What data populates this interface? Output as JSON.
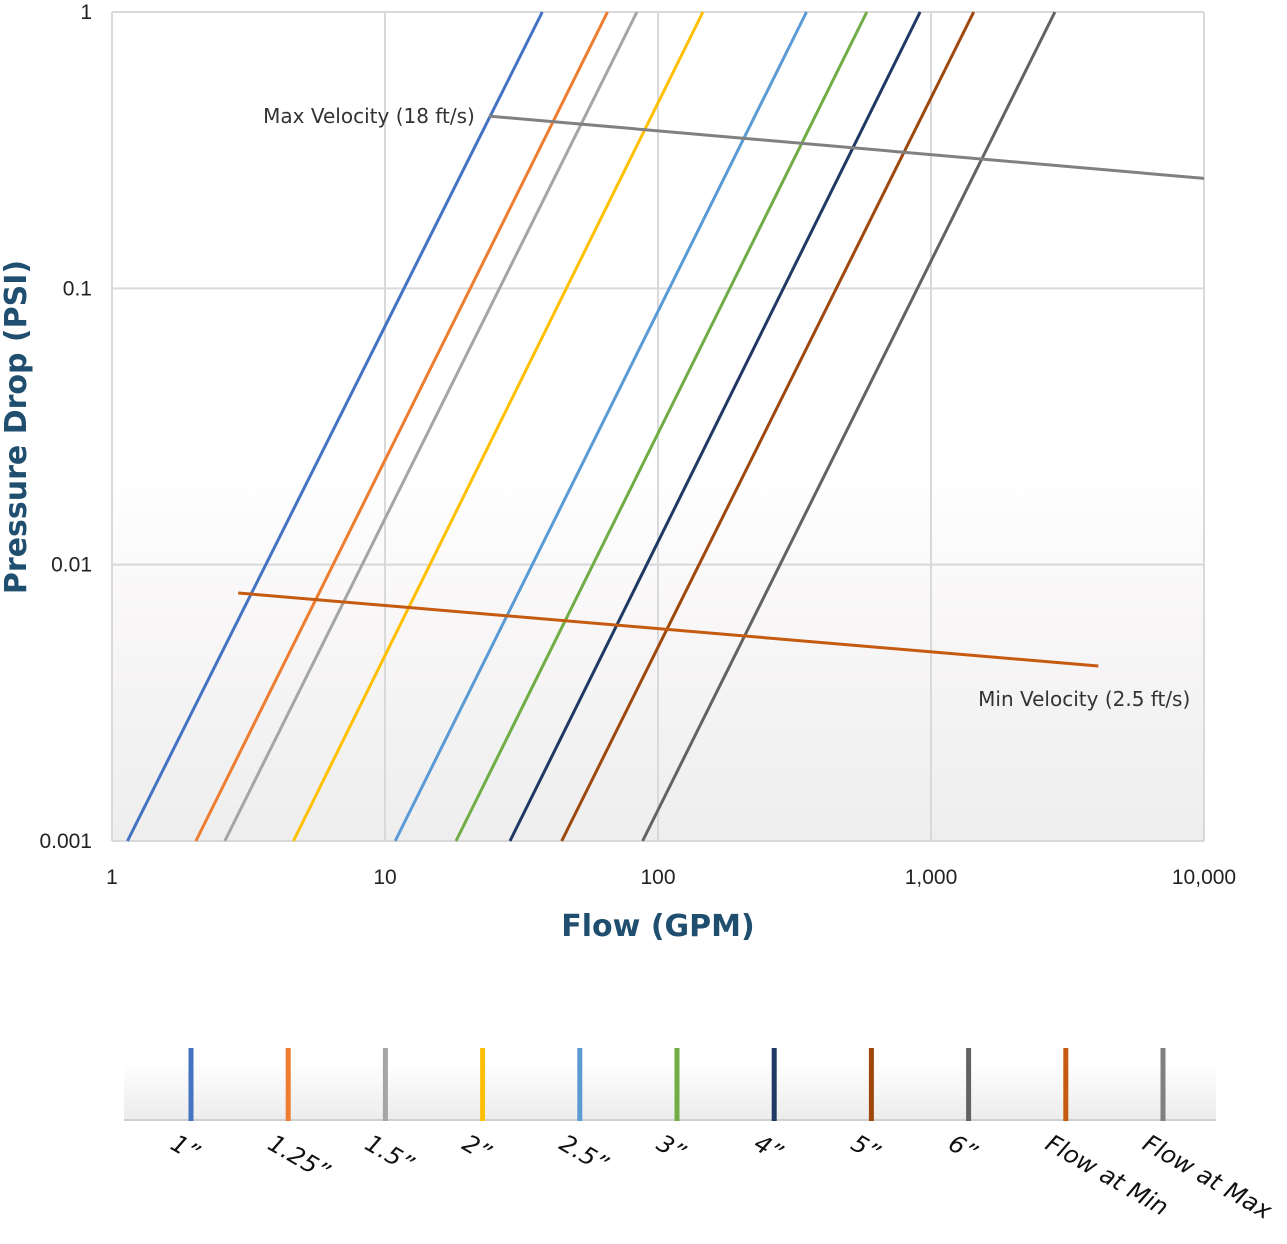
{
  "chart_data": {
    "type": "line",
    "xscale": "log",
    "yscale": "log",
    "xlim": [
      1,
      10000
    ],
    "ylim": [
      0.001,
      1
    ],
    "xlabel": "Flow (GPM)",
    "ylabel": "Pressure Drop (PSI)",
    "x_ticks": [
      {
        "value": 1,
        "label": "1"
      },
      {
        "value": 10,
        "label": "10"
      },
      {
        "value": 100,
        "label": "100"
      },
      {
        "value": 1000,
        "label": "1,000"
      },
      {
        "value": 10000,
        "label": "10,000"
      }
    ],
    "y_ticks": [
      {
        "value": 0.001,
        "label": "0.001"
      },
      {
        "value": 0.01,
        "label": "0.01"
      },
      {
        "value": 0.1,
        "label": "0.1"
      },
      {
        "value": 1,
        "label": "1"
      }
    ],
    "grid": true,
    "legend_position": "bottom",
    "series": [
      {
        "name": "1”",
        "color": "#4472c4",
        "points": [
          [
            1.14,
            0.001
          ],
          [
            37.7,
            1
          ]
        ]
      },
      {
        "name": "1.25”",
        "color": "#ed7d31",
        "points": [
          [
            2.03,
            0.001
          ],
          [
            65.3,
            1
          ]
        ]
      },
      {
        "name": "1.5”",
        "color": "#a5a5a5",
        "points": [
          [
            2.59,
            0.001
          ],
          [
            83.7,
            1
          ]
        ]
      },
      {
        "name": "2”",
        "color": "#ffc000",
        "points": [
          [
            4.62,
            0.001
          ],
          [
            146,
            1
          ]
        ]
      },
      {
        "name": "2.5”",
        "color": "#5b9bd5",
        "points": [
          [
            10.9,
            0.001
          ],
          [
            350,
            1
          ]
        ]
      },
      {
        "name": "3”",
        "color": "#70ad47",
        "points": [
          [
            18.2,
            0.001
          ],
          [
            582,
            1
          ]
        ]
      },
      {
        "name": "4”",
        "color": "#1f3864",
        "points": [
          [
            28.7,
            0.001
          ],
          [
            912,
            1
          ]
        ]
      },
      {
        "name": "5”",
        "color": "#9e480e",
        "points": [
          [
            44.4,
            0.001
          ],
          [
            1434,
            1
          ]
        ]
      },
      {
        "name": "6”",
        "color": "#636363",
        "points": [
          [
            87.8,
            0.001
          ],
          [
            2844,
            1
          ]
        ]
      },
      {
        "name": "Flow at Min",
        "color": "#c55a11",
        "points": [
          [
            2.9,
            0.0079
          ],
          [
            4100,
            0.0043
          ]
        ]
      },
      {
        "name": "Flow at Max",
        "color": "#808080",
        "points": [
          [
            24,
            0.42
          ],
          [
            10000,
            0.25
          ]
        ]
      }
    ],
    "annotations": [
      {
        "text": "Max Velocity (18 ft/s)",
        "x": 24,
        "y": 0.42
      },
      {
        "text": "Min Velocity (2.5 ft/s)",
        "x": 4100,
        "y": 0.0043
      }
    ]
  }
}
